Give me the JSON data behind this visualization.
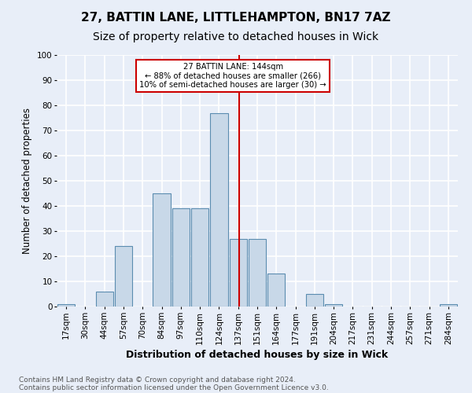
{
  "title": "27, BATTIN LANE, LITTLEHAMPTON, BN17 7AZ",
  "subtitle": "Size of property relative to detached houses in Wick",
  "xlabel": "Distribution of detached houses by size in Wick",
  "ylabel": "Number of detached properties",
  "footnote1": "Contains HM Land Registry data © Crown copyright and database right 2024.",
  "footnote2": "Contains public sector information licensed under the Open Government Licence v3.0.",
  "bin_labels": [
    "17sqm",
    "30sqm",
    "44sqm",
    "57sqm",
    "70sqm",
    "84sqm",
    "97sqm",
    "110sqm",
    "124sqm",
    "137sqm",
    "151sqm",
    "164sqm",
    "177sqm",
    "191sqm",
    "204sqm",
    "217sqm",
    "231sqm",
    "244sqm",
    "257sqm",
    "271sqm",
    "284sqm"
  ],
  "bar_heights": [
    1,
    0,
    6,
    24,
    0,
    45,
    39,
    39,
    77,
    27,
    27,
    13,
    0,
    5,
    1,
    0,
    0,
    0,
    0,
    0,
    1
  ],
  "bar_color": "#c8d8e8",
  "bar_edge_color": "#5b8db0",
  "annotation_text": "27 BATTIN LANE: 144sqm\n← 88% of detached houses are smaller (266)\n10% of semi-detached houses are larger (30) →",
  "annotation_box_color": "#ffffff",
  "annotation_box_edge_color": "#cc0000",
  "vline_color": "#cc0000",
  "ylim": [
    0,
    100
  ],
  "yticks": [
    0,
    10,
    20,
    30,
    40,
    50,
    60,
    70,
    80,
    90,
    100
  ],
  "bg_color": "#e8eef8",
  "grid_color": "#ffffff",
  "title_fontsize": 11,
  "subtitle_fontsize": 10,
  "axis_label_fontsize": 8.5,
  "tick_fontsize": 7.5,
  "footnote_fontsize": 6.5
}
